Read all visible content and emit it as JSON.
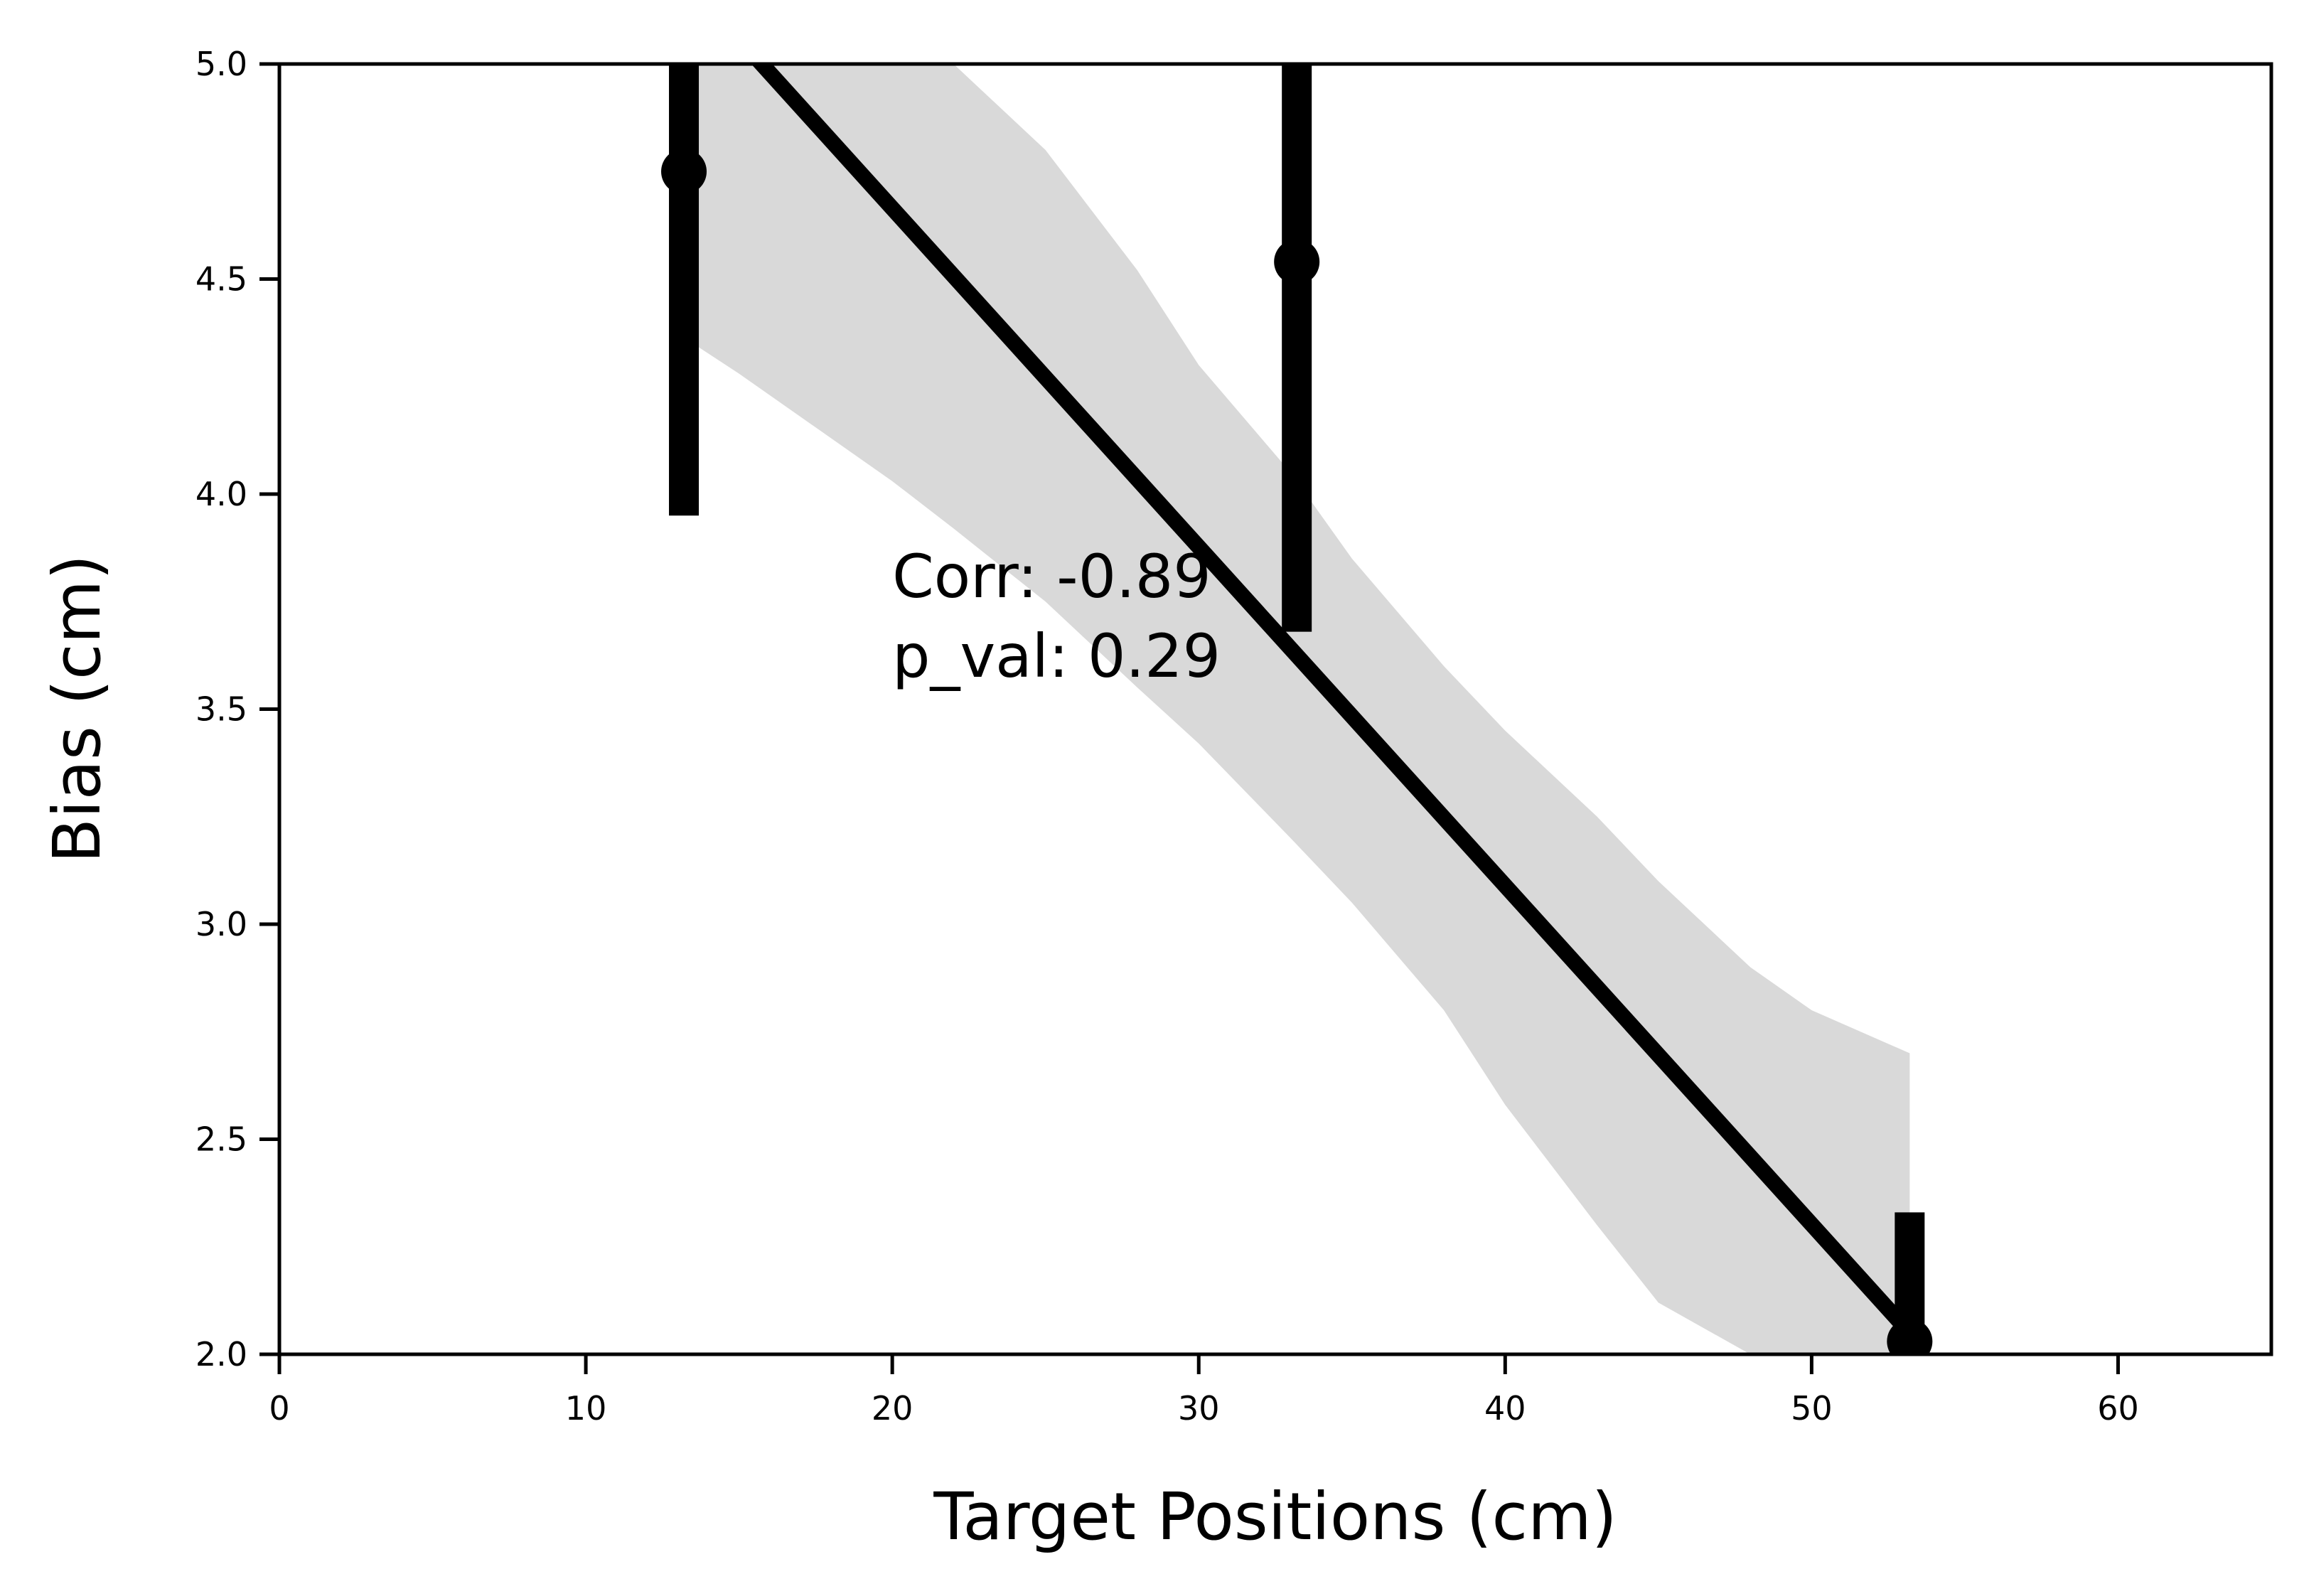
{
  "chart_data": {
    "type": "scatter",
    "title": "",
    "xlabel": "Target Positions (cm)",
    "ylabel": "Bias (cm)",
    "xlim": [
      0,
      65
    ],
    "ylim": [
      2.0,
      5.0
    ],
    "xticks": [
      0,
      10,
      20,
      30,
      40,
      50,
      60
    ],
    "yticks": [
      2.0,
      2.5,
      3.0,
      3.5,
      4.0,
      4.5,
      5.0
    ],
    "xtick_labels": [
      "0",
      "10",
      "20",
      "30",
      "40",
      "50",
      "60"
    ],
    "ytick_labels": [
      "2.0",
      "2.5",
      "3.0",
      "3.5",
      "4.0",
      "4.5",
      "5.0"
    ],
    "grid": false,
    "legend": "none",
    "points": [
      {
        "x": 13.2,
        "y": 4.75,
        "err_low": 3.95,
        "err_high": 5.0
      },
      {
        "x": 33.2,
        "y": 4.54,
        "err_low": 3.68,
        "err_high": 5.0
      },
      {
        "x": 53.2,
        "y": 2.03,
        "err_low": 2.0,
        "err_high": 2.33
      }
    ],
    "fit_line": {
      "x": [
        13.2,
        53.2
      ],
      "y": [
        5.2,
        2.05
      ]
    },
    "confidence_band": {
      "x": [
        13.5,
        15,
        17,
        20,
        22,
        25,
        28,
        30,
        33,
        35,
        38,
        40,
        43,
        45,
        48,
        50,
        53.2
      ],
      "upper": [
        5.0,
        5.0,
        5.0,
        5.0,
        5.0,
        4.8,
        4.52,
        4.3,
        4.05,
        3.85,
        3.6,
        3.45,
        3.25,
        3.1,
        2.9,
        2.8,
        2.7
      ],
      "lower": [
        4.35,
        4.28,
        4.18,
        4.03,
        3.92,
        3.75,
        3.55,
        3.42,
        3.2,
        3.05,
        2.8,
        2.58,
        2.3,
        2.12,
        2.0,
        2.0,
        2.0
      ]
    },
    "annotations": [
      "Corr: -0.89",
      "p_val: 0.29"
    ],
    "colors": {
      "marker": "#000000",
      "band": "#d9d9d9",
      "axes": "#000000"
    }
  }
}
